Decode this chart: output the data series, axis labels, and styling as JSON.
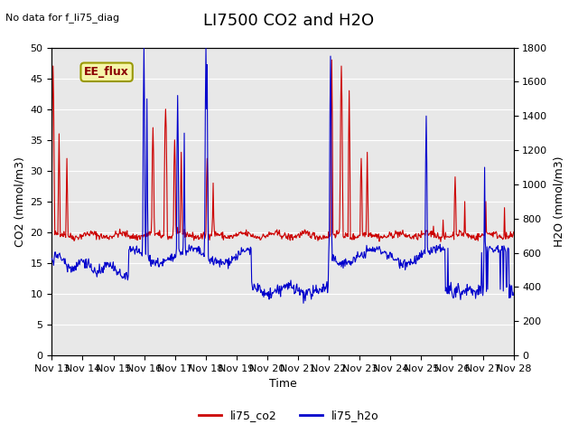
{
  "title": "LI7500 CO2 and H2O",
  "subtitle": "No data for f_li75_diag",
  "xlabel": "Time",
  "ylabel_left": "CO2 (mmol/m3)",
  "ylabel_right": "H2O (mmol/m3)",
  "annotation": "EE_flux",
  "ylim_left": [
    0,
    50
  ],
  "ylim_right": [
    0,
    1800
  ],
  "yticks_left": [
    0,
    5,
    10,
    15,
    20,
    25,
    30,
    35,
    40,
    45,
    50
  ],
  "yticks_right": [
    0,
    200,
    400,
    600,
    800,
    1000,
    1200,
    1400,
    1600,
    1800
  ],
  "xtick_labels": [
    "Nov 13",
    "Nov 14",
    "Nov 15",
    "Nov 16",
    "Nov 17",
    "Nov 18",
    "Nov 19",
    "Nov 20",
    "Nov 21",
    "Nov 22",
    "Nov 23",
    "Nov 24",
    "Nov 25",
    "Nov 26",
    "Nov 27",
    "Nov 28"
  ],
  "color_co2": "#cc0000",
  "color_h2o": "#0000cc",
  "legend_co2": "li75_co2",
  "legend_h2o": "li75_h2o",
  "bg_color": "#e8e8e8",
  "fig_bg": "#ffffff",
  "title_fontsize": 13,
  "axis_label_fontsize": 9,
  "tick_fontsize": 8
}
